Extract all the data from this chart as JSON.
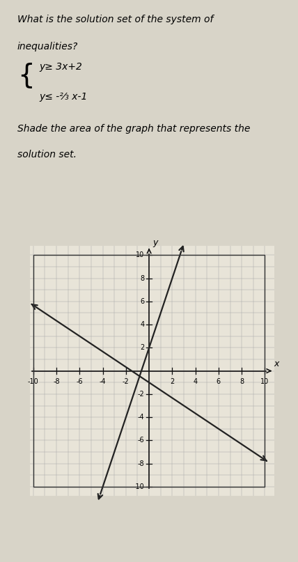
{
  "title_line1": "What is the solution set of the system of",
  "title_line2": "inequalities?",
  "ineq1": "y≥ 3x+2",
  "ineq2": "y≤ -²⁄₃ x-1",
  "shade_label": "Shade the area of the graph that represents the",
  "shade_label2": "solution set.",
  "line1_slope": 3,
  "line1_intercept": 2,
  "line2_slope": -0.66667,
  "line2_intercept": -1,
  "xmin": -10,
  "xmax": 10,
  "ymin": -10,
  "ymax": 10,
  "grid_minor_color": "#aaaaaa",
  "grid_major_color": "#555555",
  "axis_color": "#111111",
  "line_color": "#222222",
  "page_bg": "#d8d4c8",
  "grid_bg": "#e8e4d8",
  "border_color": "#333333",
  "tick_step": 2,
  "font_size_title": 10,
  "font_size_eq": 10,
  "font_size_tick": 7,
  "lw_line": 1.6,
  "lw_axis": 1.2,
  "lw_grid": 0.35,
  "lw_border": 1.0
}
